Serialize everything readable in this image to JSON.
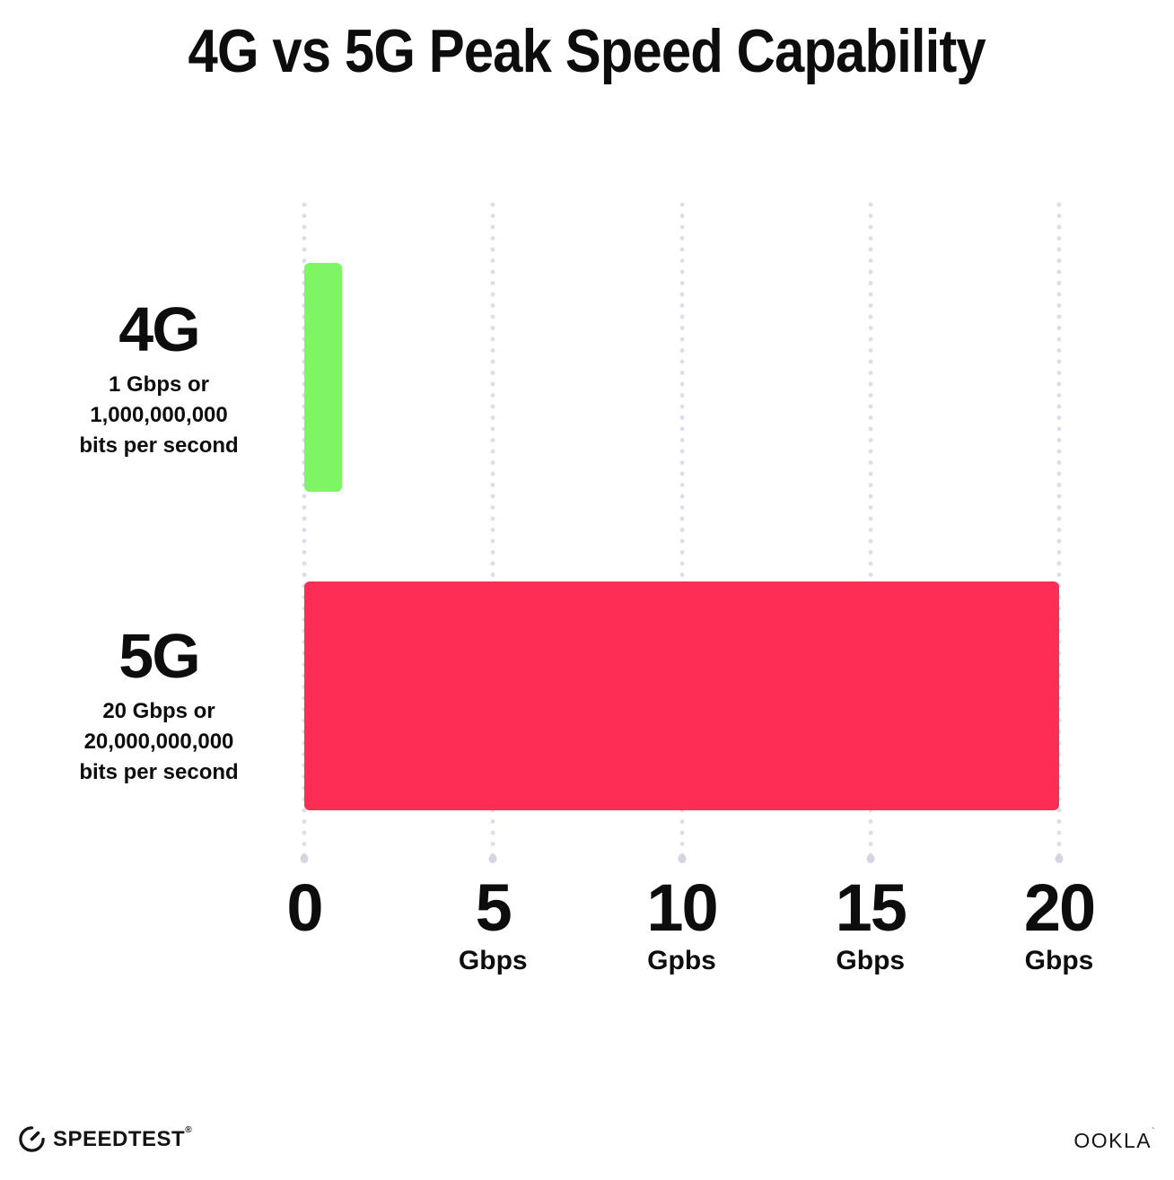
{
  "title": "4G vs 5G Peak Speed Capability",
  "colors": {
    "bar_4g_green": "#7DF564",
    "bar_5g_pink": "#FD2D55",
    "grid_dot": "#DCDEE9",
    "grid_dot_end": "#D2D5E2",
    "text": "#0D0D0D",
    "background": "#FFFFFF"
  },
  "chart_data": {
    "type": "bar",
    "orientation": "horizontal",
    "title": "4G vs 5G Peak Speed Capability",
    "categories": [
      "4G",
      "5G"
    ],
    "values": [
      1,
      20
    ],
    "xlabel": "Gbps",
    "ylabel": "",
    "xlim": [
      0,
      20
    ],
    "grid": "dotted-vertical",
    "legend": "none",
    "bars": [
      {
        "name": "4G",
        "value": 1,
        "color": "#7DF564",
        "sub_lines": [
          "1 Gbps or",
          "1,000,000,000",
          "bits per second"
        ]
      },
      {
        "name": "5G",
        "value": 20,
        "color": "#FD2D55",
        "sub_lines": [
          "20 Gbps or",
          "20,000,000,000",
          "bits per second"
        ]
      }
    ],
    "x_ticks": [
      {
        "value": 0,
        "label": "0",
        "unit": ""
      },
      {
        "value": 5,
        "label": "5",
        "unit": "Gbps"
      },
      {
        "value": 10,
        "label": "10",
        "unit": "Gpbs"
      },
      {
        "value": 15,
        "label": "15",
        "unit": "Gbps"
      },
      {
        "value": 20,
        "label": "20",
        "unit": "Gbps"
      }
    ]
  },
  "footer": {
    "left_brand": "SPEEDTEST",
    "left_brand_mark": "®",
    "left_icon": "speedometer-icon",
    "right_brand": "OOKLA",
    "right_brand_mark": "`"
  }
}
